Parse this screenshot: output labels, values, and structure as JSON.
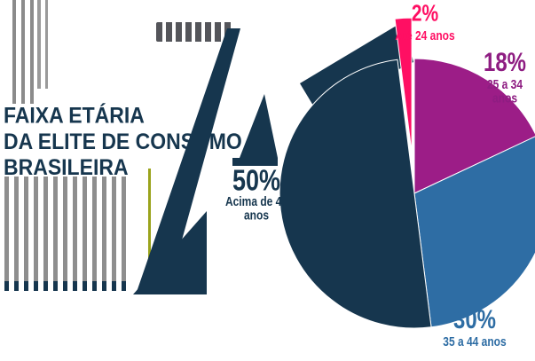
{
  "header": {
    "title_line1": "FAIXA ETÁRIA",
    "title_line2": "DA ELITE DE CONSUMO",
    "title_line3": "BRASILEIRA"
  },
  "chart_data": {
    "type": "pie",
    "title": "FAIXA ETÁRIA DA ELITE DE CONSUMO BRASILEIRA",
    "unit": "percent",
    "direction": "clockwise",
    "start_angle_deg": 0,
    "legend_position": "labels-around-slices",
    "slices": [
      {
        "name": "25 a 34 anos",
        "pct_label": "18%",
        "value": 18,
        "color": "#9c1d87",
        "exploded": false
      },
      {
        "name": "35 a 44 anos",
        "pct_label": "30%",
        "value": 30,
        "color": "#2e6da4",
        "exploded": false
      },
      {
        "name": "Acima de 45 anos",
        "pct_label": "50%",
        "value": 50,
        "color": "#16364e",
        "exploded": false
      },
      {
        "name": "Até 24 anos",
        "pct_label": "2%",
        "value": 2,
        "color": "#ff0f63",
        "exploded": true
      }
    ]
  },
  "colors": {
    "navy": "#16364e",
    "blue": "#2e6da4",
    "purple": "#9c1d87",
    "pink": "#ff0f63",
    "bars_gray": "#8e8e8e",
    "wordmark_gray": "#54555a",
    "olive_accent": "#9aa31c",
    "background": "#ffffff"
  }
}
